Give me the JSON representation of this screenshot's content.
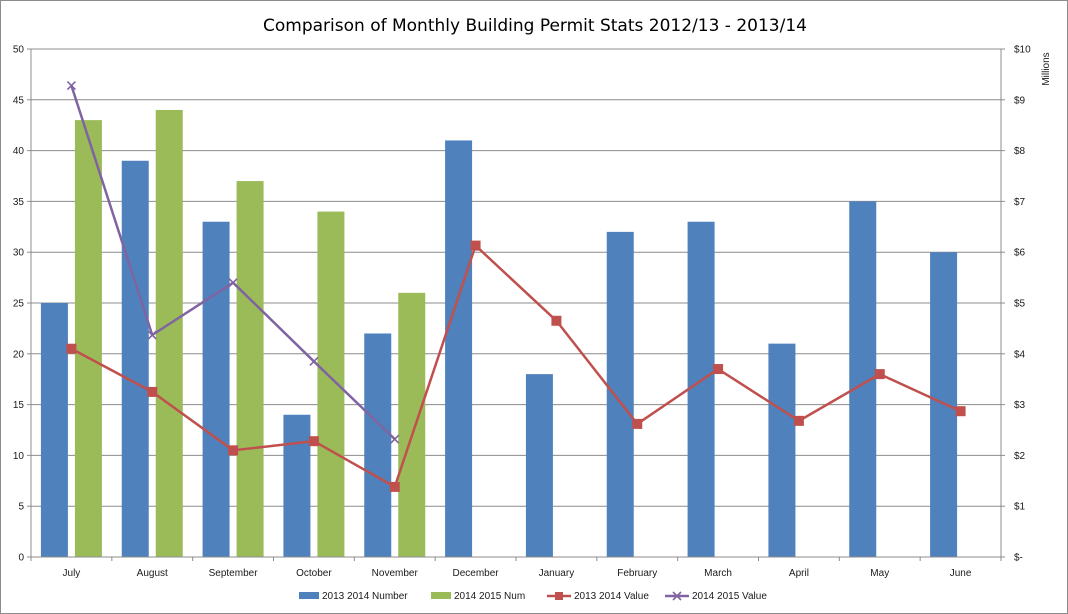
{
  "chart_data": {
    "type": "bar",
    "title": "Comparison of Monthly Building Permit Stats 2012/13 - 2013/14",
    "xlabel": "",
    "ylabel": "",
    "y2label": "Millions",
    "categories": [
      "July",
      "August",
      "September",
      "October",
      "November",
      "December",
      "January",
      "February",
      "March",
      "April",
      "May",
      "June"
    ],
    "ylim": [
      0,
      50
    ],
    "yticks": [
      "0",
      "5",
      "10",
      "15",
      "20",
      "25",
      "30",
      "35",
      "40",
      "45",
      "50"
    ],
    "y2lim": [
      0,
      10
    ],
    "y2ticks": [
      "$-",
      "$1",
      "$2",
      "$3",
      "$4",
      "$5",
      "$6",
      "$7",
      "$8",
      "$9",
      "$10"
    ],
    "grid": true,
    "legend_position": "bottom",
    "series": [
      {
        "name": "2013 2014 Number",
        "kind": "bar",
        "axis": "left",
        "color": "#4f81bd",
        "values": [
          25,
          39,
          33,
          14,
          22,
          41,
          18,
          32,
          33,
          21,
          35,
          30
        ]
      },
      {
        "name": "2014 2015 Num",
        "kind": "bar",
        "axis": "left",
        "color": "#9bbb59",
        "values": [
          43,
          44,
          37,
          34,
          26,
          null,
          null,
          null,
          null,
          null,
          null,
          null
        ]
      },
      {
        "name": "2013 2014 Value",
        "kind": "line",
        "axis": "right",
        "color": "#c0504d",
        "marker": "square",
        "values": [
          4.1,
          3.25,
          2.1,
          2.28,
          1.38,
          6.13,
          4.65,
          2.62,
          3.7,
          2.68,
          3.6,
          2.87
        ]
      },
      {
        "name": "2014 2015 Value",
        "kind": "line",
        "axis": "right",
        "color": "#8064a2",
        "marker": "x",
        "values": [
          9.28,
          4.37,
          5.4,
          3.85,
          2.32,
          null,
          null,
          null,
          null,
          null,
          null,
          null
        ]
      }
    ]
  }
}
